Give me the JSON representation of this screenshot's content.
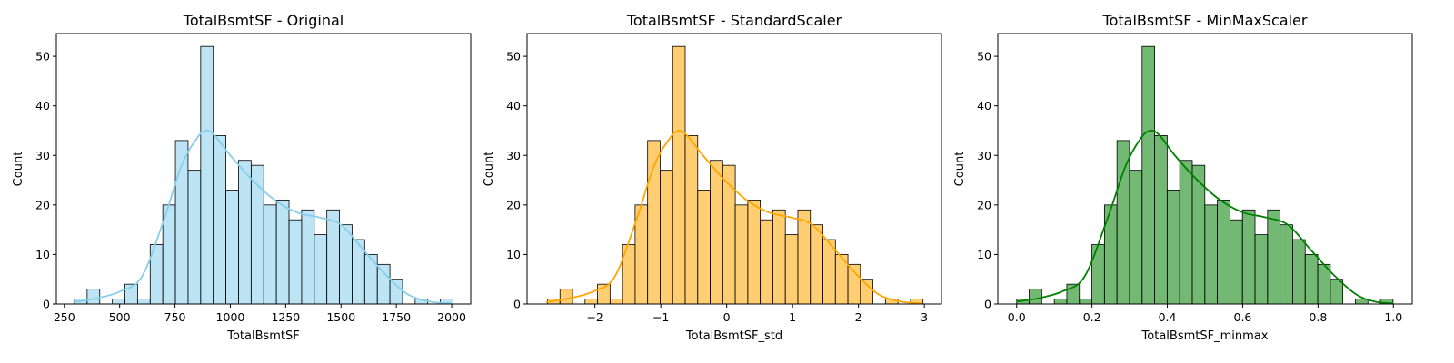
{
  "chart_data": [
    {
      "type": "histogram",
      "title": "TotalBsmtSF - Original",
      "xlabel": "TotalBsmtSF",
      "ylabel": "Count",
      "color": "#87ceeb",
      "bin_start": 296,
      "bin_width": 57.0,
      "counts": [
        1,
        3,
        0,
        1,
        4,
        1,
        12,
        20,
        33,
        27,
        52,
        34,
        23,
        29,
        28,
        20,
        21,
        17,
        19,
        14,
        19,
        16,
        13,
        10,
        8,
        5,
        0,
        1,
        0,
        1
      ],
      "kde": [
        [
          290,
          0.4
        ],
        [
          400,
          1.2
        ],
        [
          500,
          2.5
        ],
        [
          600,
          5.5
        ],
        [
          700,
          17
        ],
        [
          780,
          28
        ],
        [
          850,
          33.5
        ],
        [
          890,
          35
        ],
        [
          930,
          34
        ],
        [
          1000,
          30
        ],
        [
          1100,
          25
        ],
        [
          1200,
          21
        ],
        [
          1300,
          18.5
        ],
        [
          1400,
          17.5
        ],
        [
          1500,
          16
        ],
        [
          1600,
          11
        ],
        [
          1700,
          6
        ],
        [
          1800,
          2
        ],
        [
          1900,
          0.5
        ],
        [
          2000,
          0.1
        ]
      ],
      "xticks": [
        250,
        500,
        750,
        1000,
        1250,
        1500,
        1750,
        2000
      ],
      "xlim": [
        214,
        2086
      ],
      "yticks": [
        0,
        10,
        20,
        30,
        40,
        50
      ],
      "ylim": [
        0,
        54.6
      ]
    },
    {
      "type": "histogram",
      "title": "TotalBsmtSF - StandardScaler",
      "xlabel": "TotalBsmtSF_std",
      "ylabel": "Count",
      "color": "#ffa500",
      "bin_start": -2.72,
      "bin_width": 0.19,
      "counts": [
        1,
        3,
        0,
        1,
        4,
        1,
        12,
        20,
        33,
        27,
        52,
        34,
        23,
        29,
        28,
        20,
        21,
        17,
        19,
        14,
        19,
        16,
        13,
        10,
        8,
        5,
        0,
        1,
        0,
        1
      ],
      "kde": [
        [
          -2.74,
          0.4
        ],
        [
          -2.37,
          1.2
        ],
        [
          -2.03,
          2.5
        ],
        [
          -1.7,
          5.5
        ],
        [
          -1.37,
          17
        ],
        [
          -1.1,
          28
        ],
        [
          -0.86,
          33.5
        ],
        [
          -0.73,
          35
        ],
        [
          -0.6,
          34
        ],
        [
          -0.36,
          30
        ],
        [
          -0.03,
          25
        ],
        [
          0.3,
          21
        ],
        [
          0.64,
          18.5
        ],
        [
          0.97,
          17.5
        ],
        [
          1.3,
          16
        ],
        [
          1.64,
          11
        ],
        [
          1.97,
          6
        ],
        [
          2.3,
          2
        ],
        [
          2.64,
          0.5
        ],
        [
          2.97,
          0.1
        ]
      ],
      "xticks": [
        -2,
        -1,
        0,
        1,
        2,
        3
      ],
      "xlim": [
        -3.03,
        3.26
      ],
      "yticks": [
        0,
        10,
        20,
        30,
        40,
        50
      ],
      "ylim": [
        0,
        54.6
      ]
    },
    {
      "type": "histogram",
      "title": "TotalBsmtSF - MinMaxScaler",
      "xlabel": "TotalBsmtSF_minmax",
      "ylabel": "Count",
      "color": "#008000",
      "bin_start": 0,
      "bin_width": 0.0333,
      "counts": [
        1,
        3,
        0,
        1,
        4,
        1,
        12,
        20,
        33,
        27,
        52,
        34,
        23,
        29,
        28,
        20,
        21,
        17,
        19,
        14,
        19,
        16,
        13,
        10,
        8,
        5,
        0,
        1,
        0,
        1
      ],
      "kde": [
        [
          0,
          0.5
        ],
        [
          0.06,
          1.2
        ],
        [
          0.12,
          2.5
        ],
        [
          0.18,
          5.5
        ],
        [
          0.24,
          17
        ],
        [
          0.29,
          28
        ],
        [
          0.33,
          33.5
        ],
        [
          0.355,
          35
        ],
        [
          0.38,
          34
        ],
        [
          0.42,
          30
        ],
        [
          0.48,
          25
        ],
        [
          0.54,
          21
        ],
        [
          0.6,
          18.5
        ],
        [
          0.66,
          17.5
        ],
        [
          0.72,
          16
        ],
        [
          0.78,
          11
        ],
        [
          0.84,
          6
        ],
        [
          0.9,
          2
        ],
        [
          0.95,
          0.5
        ],
        [
          1.0,
          0.1
        ]
      ],
      "xticks": [
        0.0,
        0.2,
        0.4,
        0.6,
        0.8,
        1.0
      ],
      "xtick_labels": [
        "0.0",
        "0.2",
        "0.4",
        "0.6",
        "0.8",
        "1.0"
      ],
      "xlim": [
        -0.05,
        1.05
      ],
      "yticks": [
        0,
        10,
        20,
        30,
        40,
        50
      ],
      "ylim": [
        0,
        54.6
      ]
    }
  ]
}
